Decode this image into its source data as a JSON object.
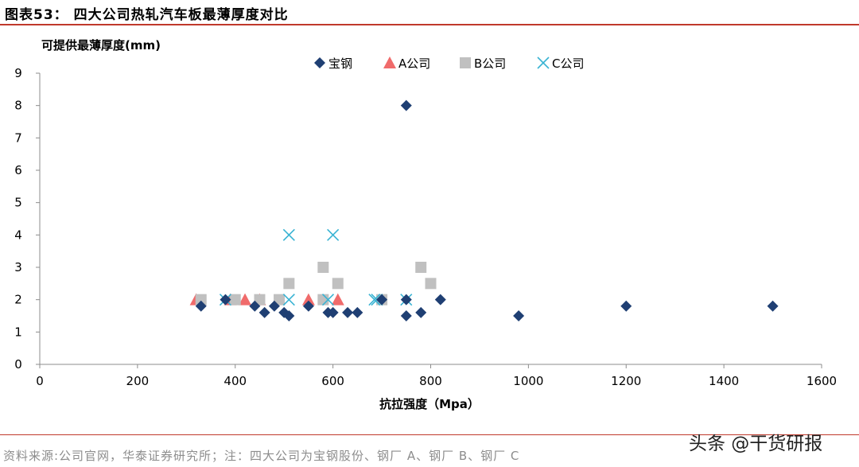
{
  "header": {
    "title": "图表53：   四大公司热轧汽车板最薄厚度对比"
  },
  "footer": {
    "source": "资料来源:公司官网，华泰证券研究所；注：四大公司为宝钢股份、钢厂 A、钢厂 B、钢厂 C",
    "watermark": "头条 @干货研报"
  },
  "chart_data": {
    "type": "scatter",
    "title": "",
    "xlabel": "抗拉强度（Mpa）",
    "ylabel": "可提供最薄厚度(mm)",
    "xlim": [
      0,
      1600
    ],
    "ylim": [
      0,
      9
    ],
    "xticks": [
      0,
      200,
      400,
      600,
      800,
      1000,
      1200,
      1400,
      1600
    ],
    "yticks": [
      0,
      1,
      2,
      3,
      4,
      5,
      6,
      7,
      8,
      9
    ],
    "grid": false,
    "legend_position": "top",
    "series": [
      {
        "name": "宝钢",
        "marker": "diamond",
        "color": "#1f3f73",
        "points": [
          [
            330,
            1.8
          ],
          [
            380,
            2.0
          ],
          [
            440,
            1.8
          ],
          [
            460,
            1.6
          ],
          [
            480,
            1.8
          ],
          [
            500,
            1.6
          ],
          [
            510,
            1.5
          ],
          [
            550,
            1.8
          ],
          [
            590,
            1.6
          ],
          [
            600,
            1.6
          ],
          [
            630,
            1.6
          ],
          [
            650,
            1.6
          ],
          [
            700,
            2.0
          ],
          [
            750,
            8.0
          ],
          [
            750,
            2.0
          ],
          [
            750,
            1.5
          ],
          [
            780,
            1.6
          ],
          [
            820,
            2.0
          ],
          [
            980,
            1.5
          ],
          [
            1200,
            1.8
          ],
          [
            1500,
            1.8
          ]
        ]
      },
      {
        "name": "A公司",
        "marker": "triangle",
        "color": "#f06b6b",
        "points": [
          [
            320,
            2.0
          ],
          [
            390,
            2.0
          ],
          [
            420,
            2.0
          ],
          [
            450,
            2.0
          ],
          [
            550,
            2.0
          ],
          [
            610,
            2.0
          ]
        ]
      },
      {
        "name": "B公司",
        "marker": "square",
        "color": "#c0c0c0",
        "points": [
          [
            330,
            2.0
          ],
          [
            400,
            2.0
          ],
          [
            450,
            2.0
          ],
          [
            490,
            2.0
          ],
          [
            510,
            2.5
          ],
          [
            580,
            3.0
          ],
          [
            580,
            2.0
          ],
          [
            610,
            2.5
          ],
          [
            700,
            2.0
          ],
          [
            780,
            3.0
          ],
          [
            800,
            2.5
          ]
        ]
      },
      {
        "name": "C公司",
        "marker": "x",
        "color": "#39b3d3",
        "points": [
          [
            380,
            2.0
          ],
          [
            510,
            4.0
          ],
          [
            510,
            2.0
          ],
          [
            590,
            2.0
          ],
          [
            600,
            4.0
          ],
          [
            685,
            2.0
          ],
          [
            690,
            2.0
          ],
          [
            750,
            2.0
          ]
        ]
      }
    ]
  }
}
